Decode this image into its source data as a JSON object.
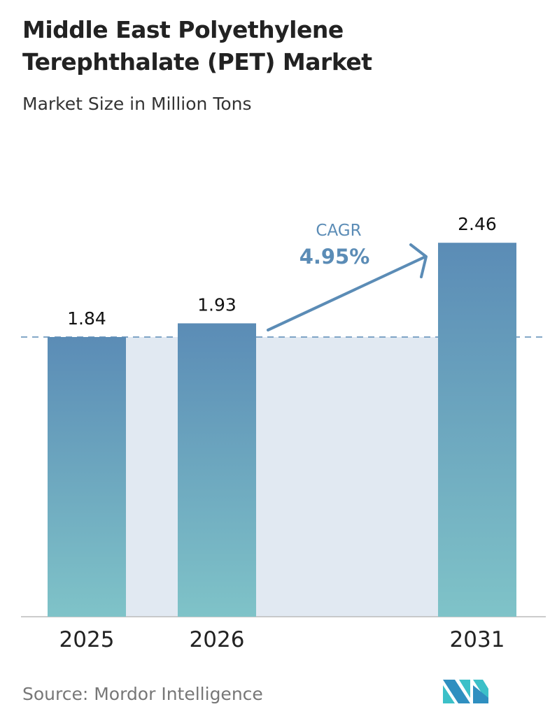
{
  "chart_data": {
    "type": "bar",
    "title": "Middle East Polyethylene Terephthalate (PET) Market",
    "subtitle": "Market Size in Million Tons",
    "categories": [
      "2025",
      "2026",
      "2031"
    ],
    "values": [
      1.84,
      1.93,
      2.46
    ],
    "ylim": [
      0,
      2.46
    ],
    "grid": false,
    "annotation": {
      "label": "CAGR",
      "value": "4.95%"
    },
    "colors": {
      "bar_top": "#5b8cb6",
      "bar_bottom": "#7fc3c8",
      "shade": "#e1e9f2",
      "accent": "#5b8cb6"
    }
  },
  "source": "Source:  Mordor Intelligence",
  "logo": "Mordor Intelligence"
}
